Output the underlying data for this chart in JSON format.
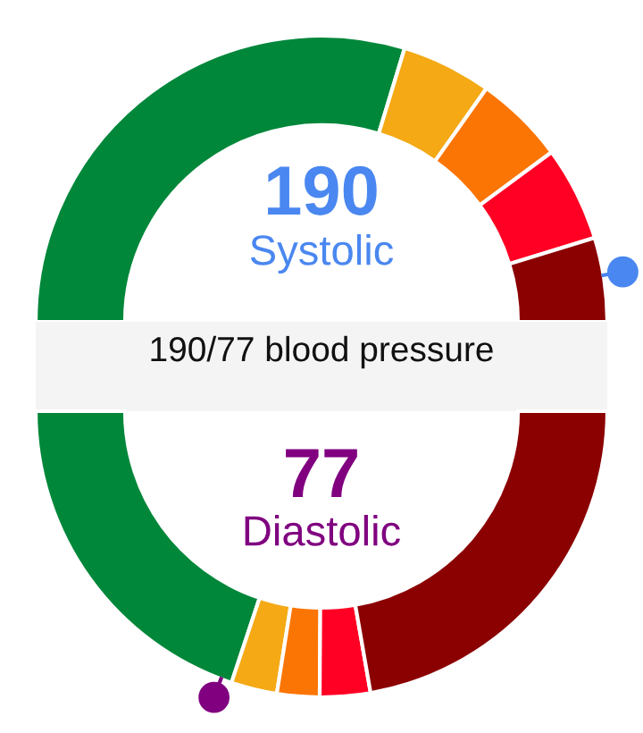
{
  "chart_data": [
    {
      "type": "donut",
      "categories": [
        null,
        null,
        null,
        null,
        null
      ],
      "values": [
        59.4,
        10.2,
        10.2,
        10.7,
        9.5
      ],
      "colors": [
        "#00873a",
        "#f4a915",
        "#fb7504",
        "#ff0024",
        "#8b0000"
      ],
      "annotations": [
        "190",
        "Systolic",
        "190/77 blood pressure"
      ]
    },
    {
      "type": "donut",
      "categories": [
        null,
        null,
        null,
        null,
        null
      ],
      "values": [
        39.8,
        5.2,
        4.8,
        5.7,
        44.5
      ],
      "colors": [
        "#00873a",
        "#f4a915",
        "#fb7504",
        "#ff0024",
        "#8b0000"
      ],
      "annotations": [
        "77",
        "Diastolic"
      ]
    }
  ]
}
